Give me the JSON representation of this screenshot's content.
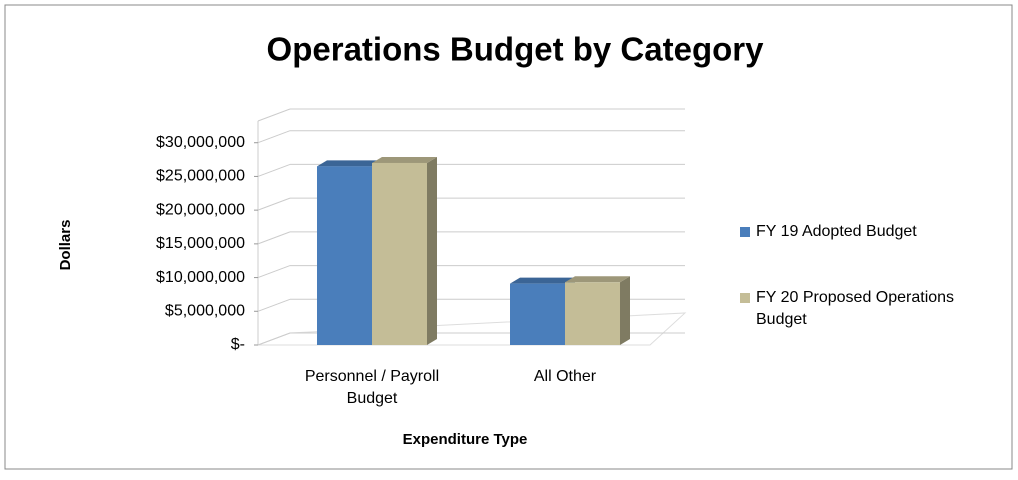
{
  "chart_data": {
    "type": "bar3d",
    "title": "Operations Budget by  Category",
    "x_label": "Expenditure Type",
    "y_label": "Dollars",
    "categories": [
      "Personnel / Payroll Budget",
      "All Other"
    ],
    "series": [
      {
        "name": "FY 19 Adopted Budget",
        "color": "#4a7ebb",
        "values": [
          26500000,
          9100000
        ]
      },
      {
        "name": "FY 20 Proposed Operations Budget",
        "color": "#c4bd97",
        "values": [
          27000000,
          9300000
        ]
      }
    ],
    "ylim": [
      0,
      35000000
    ],
    "yticks": [
      {
        "value": 0,
        "label": "$-"
      },
      {
        "value": 5000000,
        "label": "$5,000,000"
      },
      {
        "value": 10000000,
        "label": "$10,000,000"
      },
      {
        "value": 15000000,
        "label": "$15,000,000"
      },
      {
        "value": 20000000,
        "label": "$20,000,000"
      },
      {
        "value": 25000000,
        "label": "$25,000,000"
      },
      {
        "value": 30000000,
        "label": "$30,000,000"
      }
    ],
    "grid": true,
    "legend": "right"
  }
}
